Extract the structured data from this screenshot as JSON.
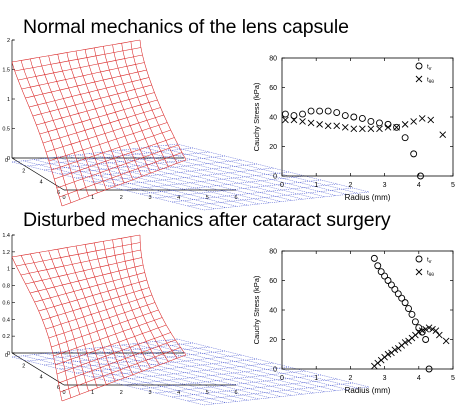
{
  "slide": {
    "title_top": "Normal mechanics of the lens capsule",
    "title_bottom": "Disturbed mechanics after cataract surgery"
  },
  "colors": {
    "mesh_wall": "#d92222",
    "mesh_base": "#3344cc",
    "marker": "#000000",
    "axis": "#000000"
  },
  "chart_data": [
    {
      "type": "surface",
      "panel": "normal-3d",
      "z_ticks": [
        "2",
        "1.5",
        "1",
        "0.5",
        "0"
      ],
      "x_ticks": [
        "0",
        "1",
        "2",
        "3",
        "4",
        "5",
        "6"
      ],
      "y_ticks": [
        "6",
        "4",
        "2",
        "0"
      ],
      "bulge": 0.4
    },
    {
      "type": "scatter",
      "panel": "normal-stress",
      "xlabel": "Radius (mm)",
      "ylabel": "Cauchy Stress (kPa)",
      "xlim": [
        0,
        5
      ],
      "ylim": [
        0,
        80
      ],
      "x_ticks": [
        0,
        1,
        2,
        3,
        4,
        5
      ],
      "y_ticks": [
        0,
        20,
        40,
        60,
        80
      ],
      "legend_position": "top-right",
      "series": [
        {
          "name": "t_rr",
          "legend_main": "t",
          "legend_sub": "rr",
          "marker": "circle",
          "points": [
            [
              0.1,
              42
            ],
            [
              0.35,
              41
            ],
            [
              0.6,
              42
            ],
            [
              0.85,
              44
            ],
            [
              1.1,
              44
            ],
            [
              1.35,
              44
            ],
            [
              1.6,
              43
            ],
            [
              1.85,
              41
            ],
            [
              2.1,
              40
            ],
            [
              2.35,
              39
            ],
            [
              2.6,
              37
            ],
            [
              2.85,
              36
            ],
            [
              3.1,
              35
            ],
            [
              3.35,
              33
            ],
            [
              3.6,
              26
            ],
            [
              3.85,
              15
            ],
            [
              4.05,
              0
            ]
          ]
        },
        {
          "name": "t_θθ",
          "legend_main": "t",
          "legend_sub": "θθ",
          "marker": "x",
          "points": [
            [
              0.1,
              38
            ],
            [
              0.35,
              38
            ],
            [
              0.6,
              37
            ],
            [
              0.85,
              36
            ],
            [
              1.1,
              35
            ],
            [
              1.35,
              34
            ],
            [
              1.6,
              34
            ],
            [
              1.85,
              33
            ],
            [
              2.1,
              32
            ],
            [
              2.35,
              32
            ],
            [
              2.6,
              32
            ],
            [
              2.85,
              32
            ],
            [
              3.1,
              33
            ],
            [
              3.35,
              33
            ],
            [
              3.6,
              35
            ],
            [
              3.85,
              37
            ],
            [
              4.1,
              39
            ],
            [
              4.35,
              38
            ],
            [
              4.7,
              28
            ]
          ]
        }
      ]
    },
    {
      "type": "surface",
      "panel": "disturbed-3d",
      "z_ticks": [
        "1.4",
        "1.2",
        "1",
        "0.8",
        "0.6",
        "0.4",
        "0.2",
        "0"
      ],
      "x_ticks": [
        "0",
        "1",
        "2",
        "3",
        "4",
        "5",
        "6"
      ],
      "y_ticks": [
        "6",
        "4",
        "2",
        "0"
      ],
      "bulge": 0.95
    },
    {
      "type": "scatter",
      "panel": "disturbed-stress",
      "xlabel": "Radius (mm)",
      "ylabel": "Cauchy Stress (kPa)",
      "xlim": [
        0,
        5
      ],
      "ylim": [
        0,
        80
      ],
      "x_ticks": [
        0,
        1,
        2,
        3,
        4,
        5
      ],
      "y_ticks": [
        0,
        20,
        40,
        60,
        80
      ],
      "legend_position": "top-right",
      "series": [
        {
          "name": "t_rr",
          "legend_main": "t",
          "legend_sub": "rr",
          "marker": "circle",
          "points": [
            [
              2.7,
              75
            ],
            [
              2.8,
              70
            ],
            [
              2.9,
              66
            ],
            [
              3.0,
              63
            ],
            [
              3.1,
              60
            ],
            [
              3.2,
              57
            ],
            [
              3.3,
              54
            ],
            [
              3.4,
              51
            ],
            [
              3.5,
              48
            ],
            [
              3.6,
              45
            ],
            [
              3.7,
              41
            ],
            [
              3.8,
              37
            ],
            [
              3.9,
              32
            ],
            [
              4.0,
              28
            ],
            [
              4.1,
              25
            ],
            [
              4.2,
              20
            ],
            [
              4.3,
              0
            ]
          ]
        },
        {
          "name": "t_θθ",
          "legend_main": "t",
          "legend_sub": "θθ",
          "marker": "x",
          "points": [
            [
              2.7,
              2
            ],
            [
              2.8,
              4
            ],
            [
              2.9,
              6
            ],
            [
              3.0,
              8
            ],
            [
              3.1,
              10
            ],
            [
              3.2,
              11
            ],
            [
              3.3,
              13
            ],
            [
              3.4,
              14
            ],
            [
              3.5,
              16
            ],
            [
              3.6,
              18
            ],
            [
              3.7,
              19
            ],
            [
              3.8,
              21
            ],
            [
              3.9,
              23
            ],
            [
              4.0,
              25
            ],
            [
              4.1,
              26
            ],
            [
              4.2,
              27
            ],
            [
              4.3,
              28
            ],
            [
              4.4,
              27
            ],
            [
              4.5,
              26
            ],
            [
              4.6,
              23
            ],
            [
              4.8,
              19
            ]
          ]
        }
      ]
    }
  ]
}
